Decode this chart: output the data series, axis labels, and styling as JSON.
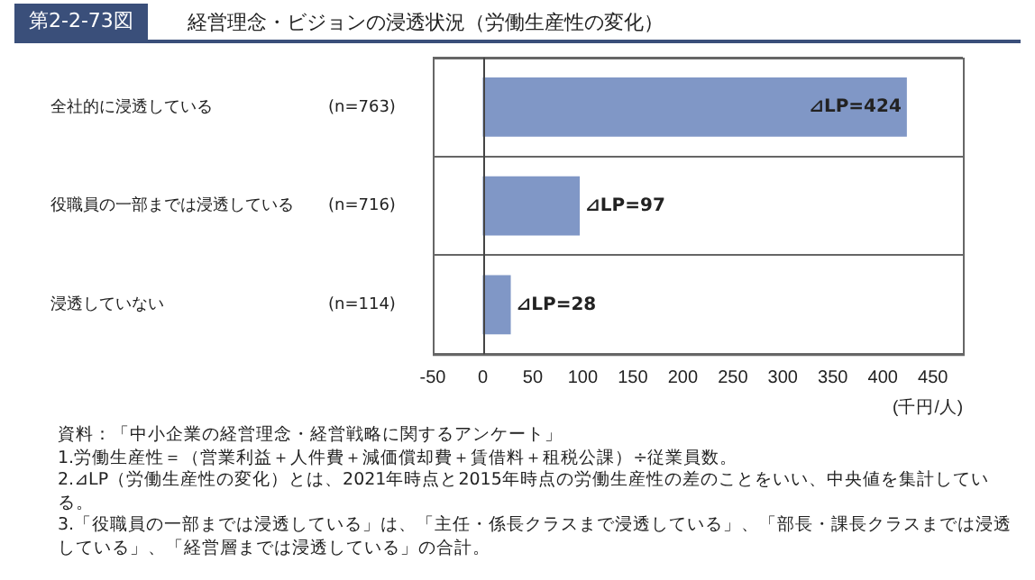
{
  "chart_data": {
    "type": "bar",
    "orientation": "horizontal",
    "title": "第2-2-73図",
    "subtitle": "経営理念・ビジョンの浸透状況（労働生産性の変化）",
    "categories": [
      "全社的に浸透している\t(n=763)",
      "役職員の一部までは浸透している\t(n=716)",
      "浸透していない\t(n=114)"
    ],
    "values": [
      424,
      97,
      28
    ],
    "value_labels": [
      "⊿LP=424",
      "⊿LP=97",
      "⊿LP=28"
    ],
    "color": "#8097c6",
    "xlim": [
      -50,
      480
    ],
    "xticks": [
      -50,
      0,
      50,
      100,
      150,
      200,
      250,
      300,
      350,
      400,
      450
    ],
    "xlabel": "(千円/人)",
    "grid": "y",
    "ref_lines": [
      {
        "axis": "x",
        "value": 0,
        "color": "#444444"
      }
    ],
    "legend": false,
    "annotations": [
      "資料：「中小企業の経営理念・経営戦略に関するアンケート」",
      "1.労働生産性＝（営業利益＋人件費＋減価償却費＋賃借料＋租税公課）÷従業員数。",
      "2.⊿LP（労働生産性の変化）とは、2021年時点と2015年時点の労働生産性の差のことをいい、中央値を集計している。",
      "3.「役職員の一部までは浸透している」は、「主任・係長クラスまで浸透している」、「部長・課長クラスまでは浸透している」、「経営層までは浸透している」の合計。"
    ]
  }
}
